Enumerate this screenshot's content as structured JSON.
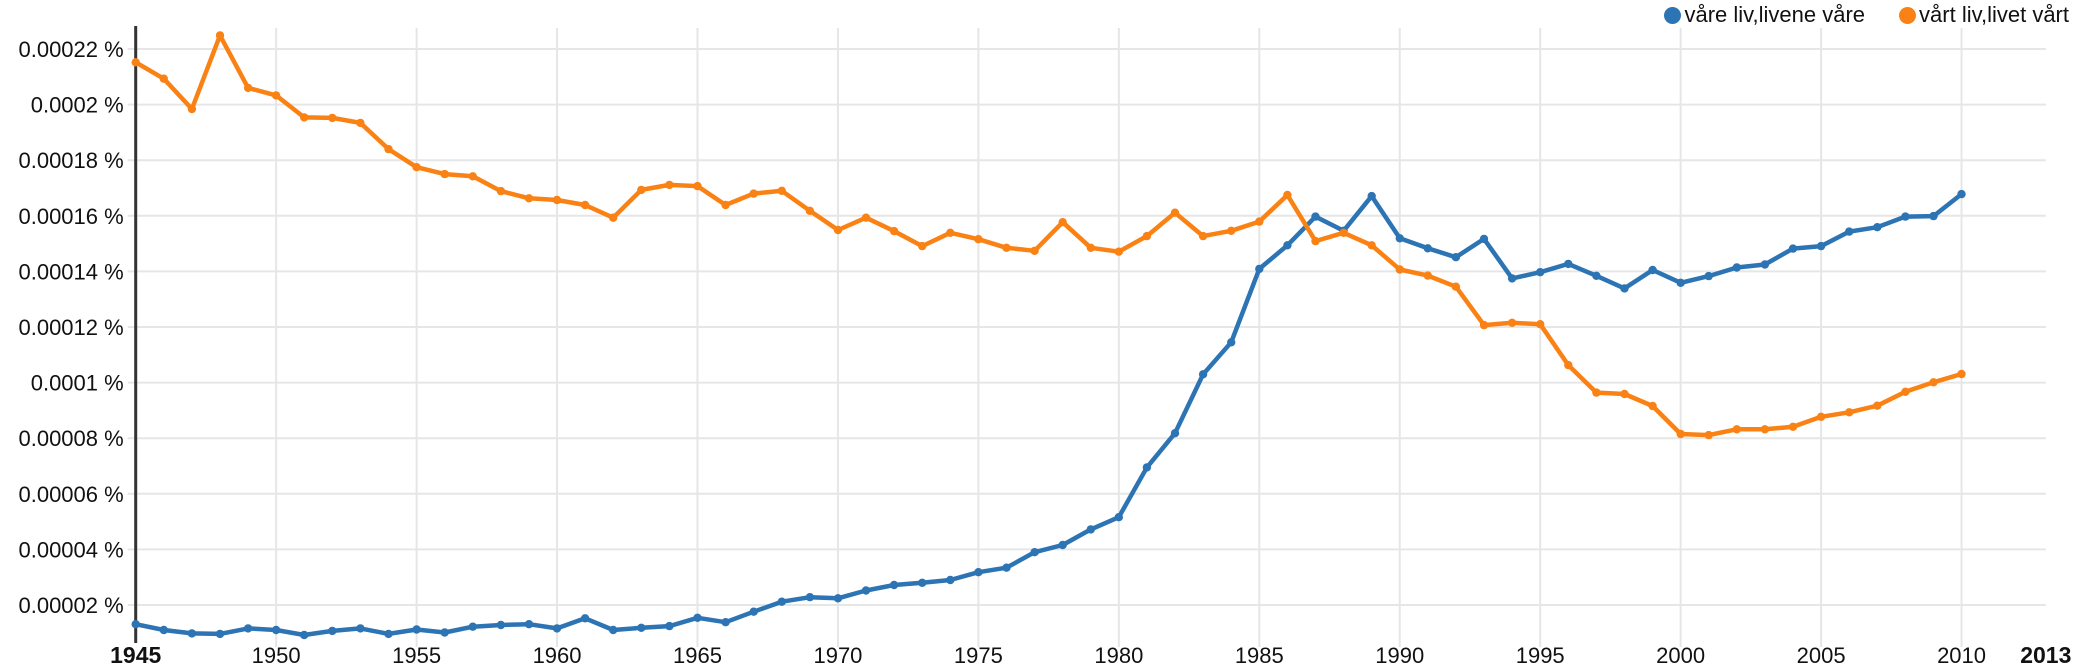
{
  "page": {
    "background": "#ffffff",
    "axis_color": "#333333",
    "gridline_color": "#e6e6e6",
    "label_color": "#111111"
  },
  "legend": {
    "position": "top-right",
    "items": [
      {
        "label": "våre liv,livene våre",
        "color": "#2c74b3"
      },
      {
        "label": "vårt liv,livet vårt",
        "color": "#fa8214"
      }
    ]
  },
  "chart_data": {
    "type": "line",
    "title": "",
    "xlabel": "",
    "ylabel": "",
    "y_axis_unit": "%",
    "grid": true,
    "legend_position": "top-right",
    "xlim": [
      1945,
      2013
    ],
    "ylim": [
      7.4e-06,
      0.000228
    ],
    "x_ticks": [
      {
        "label": "1945",
        "value": 1945,
        "bold": true,
        "gridline": false
      },
      {
        "label": "1950",
        "value": 1950,
        "bold": false,
        "gridline": true
      },
      {
        "label": "1955",
        "value": 1955,
        "bold": false,
        "gridline": true
      },
      {
        "label": "1960",
        "value": 1960,
        "bold": false,
        "gridline": true
      },
      {
        "label": "1965",
        "value": 1965,
        "bold": false,
        "gridline": true
      },
      {
        "label": "1970",
        "value": 1970,
        "bold": false,
        "gridline": true
      },
      {
        "label": "1975",
        "value": 1975,
        "bold": false,
        "gridline": true
      },
      {
        "label": "1980",
        "value": 1980,
        "bold": false,
        "gridline": true
      },
      {
        "label": "1985",
        "value": 1985,
        "bold": false,
        "gridline": true
      },
      {
        "label": "1990",
        "value": 1990,
        "bold": false,
        "gridline": true
      },
      {
        "label": "1995",
        "value": 1995,
        "bold": false,
        "gridline": true
      },
      {
        "label": "2000",
        "value": 2000,
        "bold": false,
        "gridline": true
      },
      {
        "label": "2005",
        "value": 2005,
        "bold": false,
        "gridline": true
      },
      {
        "label": "2010",
        "value": 2010,
        "bold": false,
        "gridline": true
      },
      {
        "label": "2013",
        "value": 2013,
        "bold": true,
        "gridline": false
      }
    ],
    "y_ticks": [
      {
        "label": "0.00022 %",
        "value": 0.00022
      },
      {
        "label": "0.0002 %",
        "value": 0.0002
      },
      {
        "label": "0.00018 %",
        "value": 0.00018
      },
      {
        "label": "0.00016 %",
        "value": 0.00016
      },
      {
        "label": "0.00014 %",
        "value": 0.00014
      },
      {
        "label": "0.00012 %",
        "value": 0.00012
      },
      {
        "label": "0.0001 %",
        "value": 0.0001
      },
      {
        "label": "0.00008 %",
        "value": 8e-05
      },
      {
        "label": "0.00006 %",
        "value": 6e-05
      },
      {
        "label": "0.00004 %",
        "value": 4e-05
      },
      {
        "label": "0.00002 %",
        "value": 2e-05
      }
    ],
    "x": [
      1945,
      1946,
      1947,
      1948,
      1949,
      1950,
      1951,
      1952,
      1953,
      1954,
      1955,
      1956,
      1957,
      1958,
      1959,
      1960,
      1961,
      1962,
      1963,
      1964,
      1965,
      1966,
      1967,
      1968,
      1969,
      1970,
      1971,
      1972,
      1973,
      1974,
      1975,
      1976,
      1977,
      1978,
      1979,
      1980,
      1981,
      1982,
      1983,
      1984,
      1985,
      1986,
      1987,
      1988,
      1989,
      1990,
      1991,
      1992,
      1993,
      1994,
      1995,
      1996,
      1997,
      1998,
      1999,
      2000,
      2001,
      2002,
      2003,
      2004,
      2005,
      2006,
      2007,
      2008,
      2009,
      2010
    ],
    "series": [
      {
        "name": "våre liv,livene våre",
        "color": "#2c74b3",
        "values": [
          1.31e-05,
          1.1e-05,
          9.8e-06,
          9.6e-06,
          1.16e-05,
          1.1e-05,
          9.2e-06,
          1.07e-05,
          1.16e-05,
          9.6e-06,
          1.12e-05,
          1.01e-05,
          1.22e-05,
          1.28e-05,
          1.31e-05,
          1.16e-05,
          1.52e-05,
          1.1e-05,
          1.18e-05,
          1.24e-05,
          1.54e-05,
          1.38e-05,
          1.76e-05,
          2.12e-05,
          2.28e-05,
          2.24e-05,
          2.52e-05,
          2.72e-05,
          2.8e-05,
          2.9e-05,
          3.18e-05,
          3.34e-05,
          3.9e-05,
          4.16e-05,
          4.72e-05,
          5.16e-05,
          6.95e-05,
          8.18e-05,
          0.000103,
          0.0001145,
          0.0001409,
          0.0001494,
          0.0001597,
          0.0001546,
          0.0001671,
          0.0001519,
          0.0001483,
          0.0001451,
          0.0001517,
          0.0001375,
          0.0001397,
          0.0001427,
          0.0001384,
          0.0001339,
          0.0001405,
          0.0001359,
          0.0001383,
          0.0001414,
          0.0001425,
          0.0001482,
          0.0001491,
          0.0001543,
          0.0001559,
          0.0001597,
          0.0001599,
          0.0001678
        ]
      },
      {
        "name": "vårt liv,livet vårt",
        "color": "#fa8214",
        "values": [
          0.0002152,
          0.0002093,
          0.0001984,
          0.0002249,
          0.000206,
          0.0002033,
          0.0001954,
          0.0001952,
          0.0001934,
          0.000184,
          0.0001775,
          0.000175,
          0.0001742,
          0.0001689,
          0.0001663,
          0.0001657,
          0.0001639,
          0.0001593,
          0.0001693,
          0.0001711,
          0.0001707,
          0.0001639,
          0.000168,
          0.000169,
          0.0001618,
          0.0001549,
          0.0001593,
          0.0001545,
          0.0001491,
          0.0001539,
          0.0001516,
          0.0001485,
          0.0001474,
          0.0001577,
          0.0001485,
          0.0001471,
          0.0001527,
          0.0001611,
          0.0001527,
          0.0001546,
          0.0001579,
          0.0001675,
          0.0001509,
          0.0001539,
          0.0001494,
          0.0001407,
          0.0001385,
          0.0001345,
          0.0001207,
          0.0001215,
          0.000121,
          0.0001063,
          9.64e-05,
          9.59e-05,
          9.16e-05,
          8.15e-05,
          8.11e-05,
          8.32e-05,
          8.32e-05,
          8.41e-05,
          8.77e-05,
          8.93e-05,
          9.17e-05,
          9.67e-05,
          0.0001001,
          0.0001031
        ]
      }
    ]
  }
}
